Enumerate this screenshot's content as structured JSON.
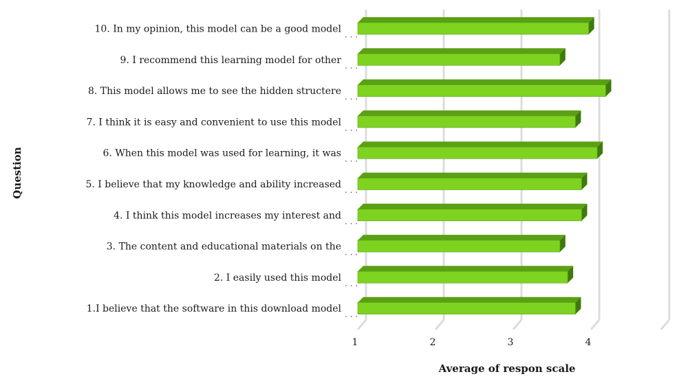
{
  "chart_data": {
    "type": "bar",
    "orientation": "horizontal",
    "xlabel": "Average of respon scale",
    "ylabel": "Question",
    "xlim": [
      1,
      4.9
    ],
    "xticks": [
      1,
      2,
      3,
      4
    ],
    "grid": true,
    "bar_color": "#7ed321",
    "bar_top_color": "#5aa014",
    "bar_side_color": "#3f7a0c",
    "categories": [
      "10. In my opinion, this model can be a good model",
      "9. I recommend this learning model for other",
      "8. This model allows me to see the hidden structere",
      "7. I think it is easy and convenient to use this model",
      "6. When this model was used for learning, it was",
      "5. I believe that my knowledge and ability increased",
      "4. I think this model increases my interest and",
      "3. The content and educational materials on the",
      "2. I easily used this model",
      "1.I believe that the software in this download model"
    ],
    "values": [
      3.97,
      3.6,
      4.19,
      3.8,
      4.08,
      3.88,
      3.88,
      3.6,
      3.7,
      3.8
    ]
  }
}
